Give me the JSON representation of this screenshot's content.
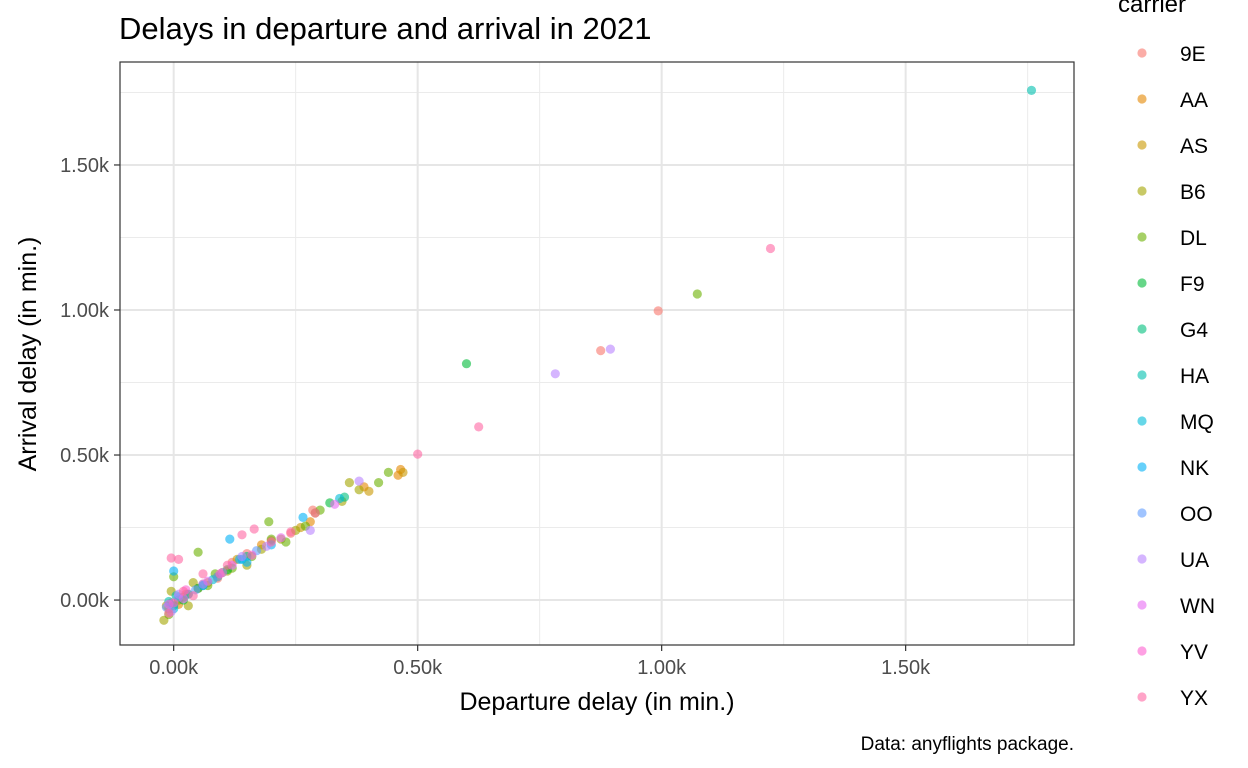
{
  "chart_data": {
    "type": "scatter",
    "title": "Delays in departure and arrival in 2021",
    "xlabel": "Departure delay (in min.)",
    "ylabel": "Arrival delay (in min.)",
    "caption": "Data: anyflights package.",
    "xlim": [
      -110,
      1845
    ],
    "ylim": [
      -155,
      1855
    ],
    "x_ticks": [
      {
        "value": 0,
        "label": "0.00k"
      },
      {
        "value": 500,
        "label": "0.50k"
      },
      {
        "value": 1000,
        "label": "1.00k"
      },
      {
        "value": 1500,
        "label": "1.50k"
      }
    ],
    "y_ticks": [
      {
        "value": 0,
        "label": "0.00k"
      },
      {
        "value": 500,
        "label": "0.50k"
      },
      {
        "value": 1000,
        "label": "1.00k"
      },
      {
        "value": 1500,
        "label": "1.50k"
      }
    ],
    "grid": true,
    "legend": {
      "title": "carrier",
      "placement": "right",
      "entries": [
        {
          "name": "9E",
          "color": "#F8766D"
        },
        {
          "name": "AA",
          "color": "#E58700"
        },
        {
          "name": "AS",
          "color": "#C99800"
        },
        {
          "name": "B6",
          "color": "#A3A500"
        },
        {
          "name": "DL",
          "color": "#6BB100"
        },
        {
          "name": "F9",
          "color": "#00BA38"
        },
        {
          "name": "G4",
          "color": "#00BF7D"
        },
        {
          "name": "HA",
          "color": "#00C0AF"
        },
        {
          "name": "MQ",
          "color": "#00BCD8"
        },
        {
          "name": "NK",
          "color": "#00B0F6"
        },
        {
          "name": "OO",
          "color": "#619CFF"
        },
        {
          "name": "UA",
          "color": "#B983FF"
        },
        {
          "name": "WN",
          "color": "#E76BF3"
        },
        {
          "name": "YV",
          "color": "#FD61D1"
        },
        {
          "name": "YX",
          "color": "#FF67A4"
        }
      ]
    },
    "series": [
      {
        "name": "9E",
        "points": [
          [
            875,
            860
          ],
          [
            993,
            997
          ],
          [
            285,
            310
          ],
          [
            200,
            205
          ],
          [
            120,
            130
          ],
          [
            60,
            55
          ],
          [
            -5,
            -10
          ],
          [
            30,
            20
          ],
          [
            150,
            160
          ],
          [
            240,
            230
          ],
          [
            90,
            75
          ]
        ]
      },
      {
        "name": "AA",
        "points": [
          [
            465,
            450
          ],
          [
            460,
            430
          ],
          [
            390,
            390
          ],
          [
            10,
            -15
          ],
          [
            50,
            40
          ],
          [
            180,
            190
          ],
          [
            100,
            95
          ],
          [
            280,
            270
          ],
          [
            -10,
            -30
          ],
          [
            20,
            10
          ]
        ]
      },
      {
        "name": "AS",
        "points": [
          [
            400,
            375
          ],
          [
            470,
            440
          ],
          [
            25,
            20
          ],
          [
            130,
            140
          ],
          [
            260,
            250
          ],
          [
            -15,
            -20
          ],
          [
            70,
            60
          ]
        ]
      },
      {
        "name": "B6",
        "points": [
          [
            360,
            405
          ],
          [
            345,
            340
          ],
          [
            380,
            380
          ],
          [
            -20,
            -70
          ],
          [
            30,
            -20
          ],
          [
            150,
            120
          ],
          [
            220,
            210
          ],
          [
            290,
            300
          ],
          [
            90,
            80
          ],
          [
            -5,
            30
          ],
          [
            40,
            60
          ],
          [
            180,
            175
          ],
          [
            110,
            100
          ],
          [
            250,
            240
          ]
        ]
      },
      {
        "name": "DL",
        "points": [
          [
            1073,
            1055
          ],
          [
            420,
            405
          ],
          [
            440,
            440
          ],
          [
            300,
            310
          ],
          [
            195,
            270
          ],
          [
            50,
            165
          ],
          [
            -10,
            -50
          ],
          [
            70,
            50
          ],
          [
            160,
            150
          ],
          [
            230,
            200
          ],
          [
            10,
            0
          ],
          [
            120,
            110
          ],
          [
            0,
            80
          ],
          [
            270,
            255
          ],
          [
            85,
            90
          ],
          [
            200,
            210
          ]
        ]
      },
      {
        "name": "F9",
        "points": [
          [
            600,
            815
          ],
          [
            320,
            335
          ],
          [
            50,
            40
          ],
          [
            110,
            105
          ],
          [
            20,
            0
          ]
        ]
      },
      {
        "name": "G4",
        "points": [
          [
            350,
            355
          ],
          [
            150,
            150
          ],
          [
            0,
            -20
          ],
          [
            60,
            50
          ]
        ]
      },
      {
        "name": "HA",
        "points": [
          [
            1758,
            1757
          ],
          [
            5,
            15
          ],
          [
            -10,
            -5
          ]
        ]
      },
      {
        "name": "MQ",
        "points": [
          [
            340,
            350
          ],
          [
            140,
            140
          ],
          [
            30,
            20
          ],
          [
            80,
            70
          ],
          [
            0,
            -30
          ]
        ]
      },
      {
        "name": "NK",
        "points": [
          [
            115,
            210
          ],
          [
            265,
            285
          ],
          [
            135,
            140
          ],
          [
            60,
            50
          ],
          [
            0,
            100
          ],
          [
            150,
            130
          ],
          [
            200,
            190
          ]
        ]
      },
      {
        "name": "OO",
        "points": [
          [
            10,
            10
          ],
          [
            90,
            80
          ],
          [
            170,
            170
          ],
          [
            -15,
            -25
          ],
          [
            45,
            35
          ]
        ]
      },
      {
        "name": "UA",
        "points": [
          [
            782,
            780
          ],
          [
            895,
            865
          ],
          [
            380,
            410
          ],
          [
            280,
            240
          ],
          [
            100,
            95
          ],
          [
            10,
            20
          ],
          [
            190,
            185
          ],
          [
            -5,
            -40
          ],
          [
            60,
            55
          ],
          [
            140,
            150
          ]
        ]
      },
      {
        "name": "WN",
        "points": [
          [
            330,
            330
          ],
          [
            120,
            120
          ],
          [
            20,
            5
          ],
          [
            70,
            65
          ],
          [
            -10,
            -15
          ],
          [
            220,
            215
          ]
        ]
      },
      {
        "name": "YV",
        "points": [
          [
            25,
            35
          ],
          [
            95,
            90
          ],
          [
            0,
            -10
          ],
          [
            160,
            155
          ]
        ]
      },
      {
        "name": "YX",
        "points": [
          [
            1223,
            1212
          ],
          [
            625,
            597
          ],
          [
            500,
            503
          ],
          [
            -5,
            145
          ],
          [
            10,
            140
          ],
          [
            290,
            300
          ],
          [
            165,
            245
          ],
          [
            140,
            225
          ],
          [
            60,
            90
          ],
          [
            -10,
            -45
          ],
          [
            20,
            30
          ],
          [
            200,
            200
          ],
          [
            110,
            120
          ],
          [
            240,
            235
          ],
          [
            40,
            15
          ]
        ]
      }
    ]
  }
}
